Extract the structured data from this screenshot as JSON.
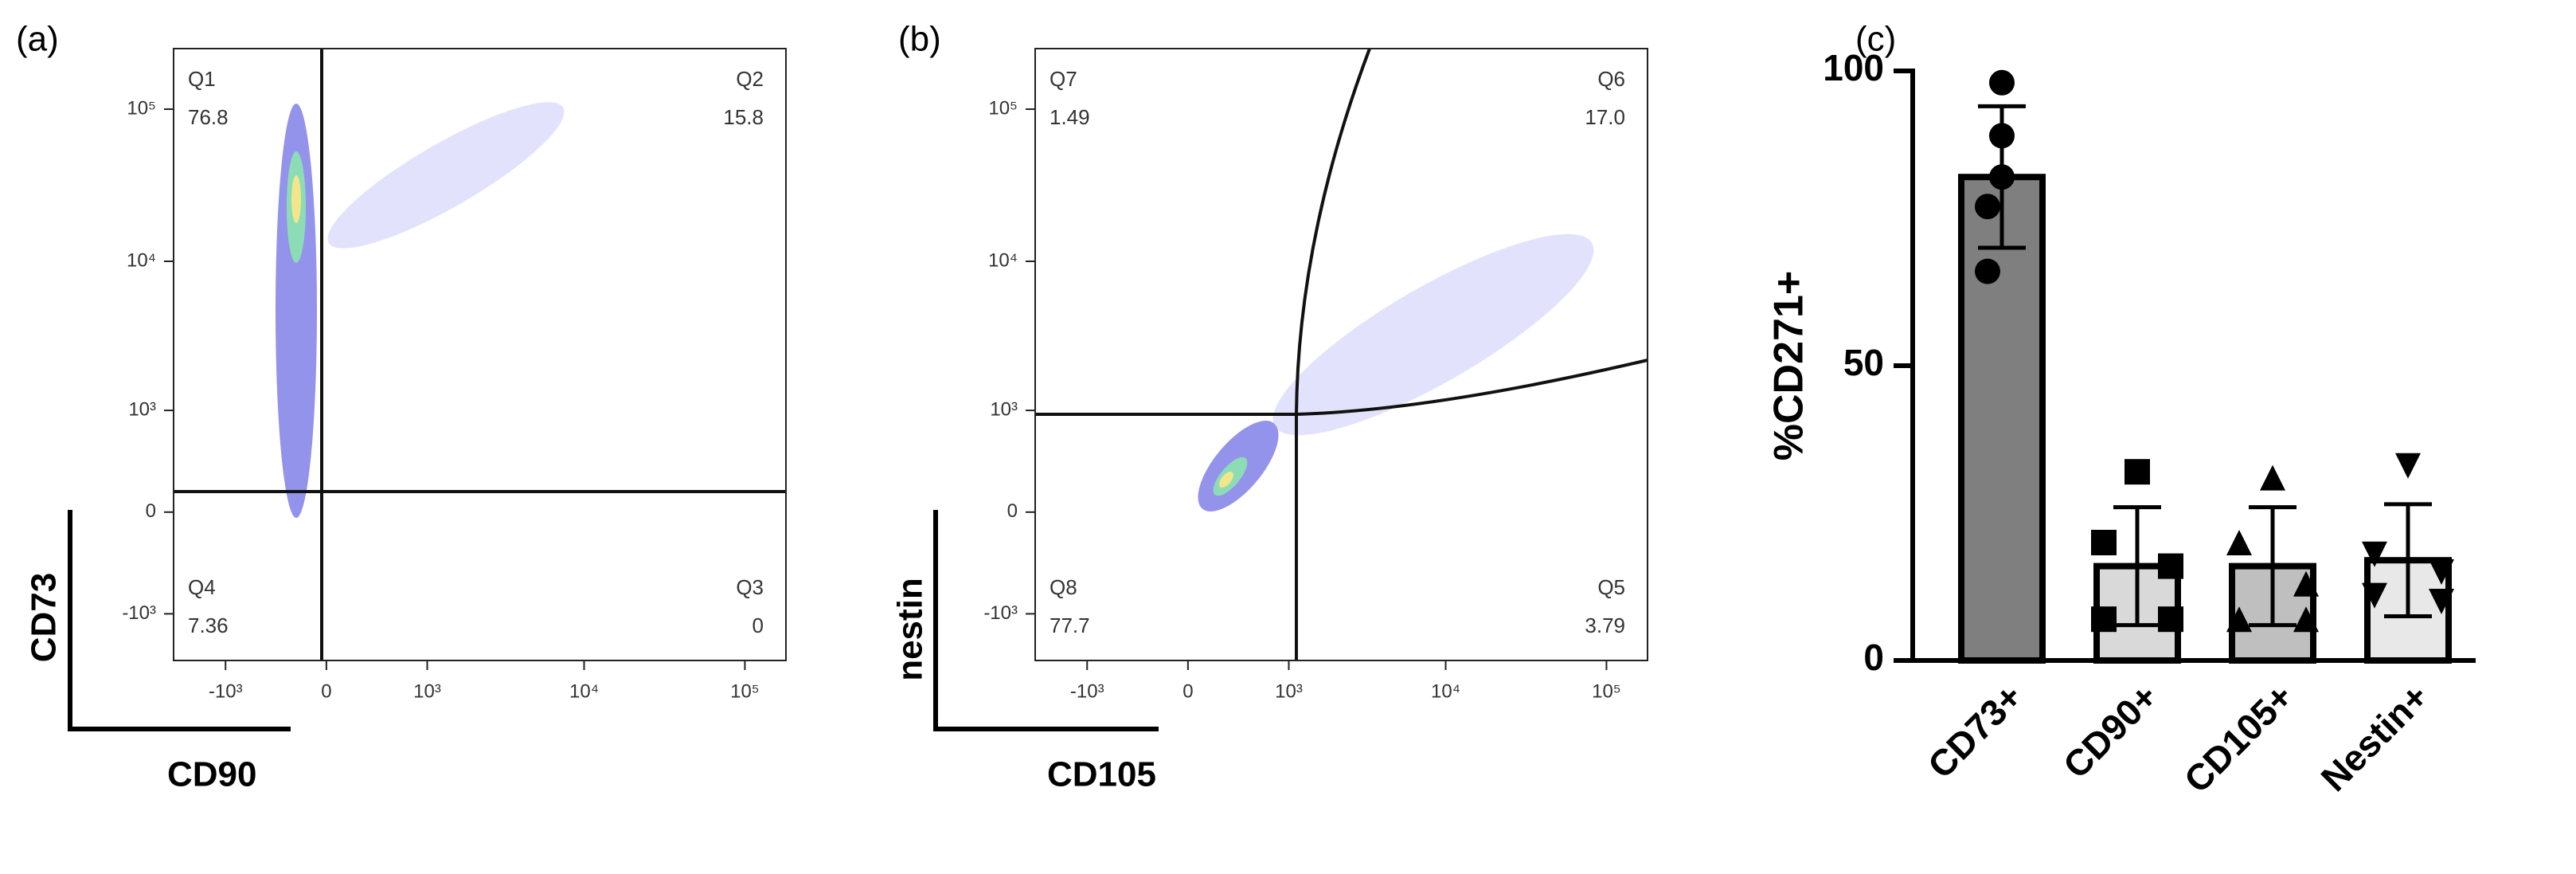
{
  "chart_data": [
    {
      "type": "flow",
      "title": "(a)",
      "xlabel": "CD90",
      "ylabel": "CD73",
      "xlim": [
        -2200,
        180000
      ],
      "ylim": [
        -2100,
        250000
      ],
      "xticks": [
        {
          "value": -1000,
          "label": "-10³"
        },
        0,
        {
          "value": 1000,
          "label": "10³"
        },
        {
          "value": 10000,
          "label": "10⁴"
        },
        {
          "value": 100000,
          "label": "10⁵"
        }
      ],
      "yticks": [
        {
          "value": -1000,
          "label": "-10³"
        },
        0,
        {
          "value": 1000,
          "label": "10³"
        },
        {
          "value": 10000,
          "label": "10⁴"
        },
        {
          "value": 100000,
          "label": "10⁵"
        }
      ],
      "quadrants": [
        "Q1",
        "Q2",
        "Q3",
        "Q4"
      ],
      "values": [
        76.8,
        15.8,
        0,
        7.36
      ],
      "value_labels": [
        "76.8",
        "15.8",
        "0",
        "7.36"
      ]
    },
    {
      "type": "flow",
      "title": "(b)",
      "xlabel": "CD105",
      "ylabel": "nestin",
      "xlim": [
        -2200,
        180000
      ],
      "ylim": [
        -2100,
        250000
      ],
      "xticks": [
        {
          "value": -1000,
          "label": "-10³"
        },
        0,
        {
          "value": 1000,
          "label": "10³"
        },
        {
          "value": 10000,
          "label": "10⁴"
        },
        {
          "value": 100000,
          "label": "10⁵"
        }
      ],
      "yticks": [
        {
          "value": -1000,
          "label": "-10³"
        },
        0,
        {
          "value": 1000,
          "label": "10³"
        },
        {
          "value": 10000,
          "label": "10⁴"
        },
        {
          "value": 100000,
          "label": "10⁵"
        }
      ],
      "quadrants": [
        "Q5",
        "Q6",
        "Q7",
        "Q8"
      ],
      "values": [
        3.79,
        17.0,
        1.49,
        77.7
      ],
      "value_labels": [
        "3.79",
        "17.0",
        "1.49",
        "77.7"
      ]
    },
    {
      "type": "bar",
      "title": "(c)",
      "ylabel": "%CD271+",
      "categories": [
        "CD73+",
        "CD90+",
        "CD105+",
        "Nestin+"
      ],
      "values": [
        82,
        16,
        16,
        17
      ],
      "errors": [
        12,
        10,
        10,
        9.5
      ],
      "points": [
        [
          98,
          89,
          82,
          77,
          66
        ],
        [
          32,
          20,
          16,
          7,
          7
        ],
        [
          31,
          20,
          13,
          7,
          7
        ],
        [
          33,
          18,
          15,
          11,
          10
        ]
      ],
      "markers": [
        "circle",
        "square",
        "triangle-up",
        "triangle-down"
      ],
      "colors": [
        "#7f7f7f",
        "#d9d9d9",
        "#bfbfbf",
        "#e8e8e8"
      ],
      "ylim": [
        0,
        100
      ],
      "yticks": [
        0,
        50,
        100
      ]
    }
  ]
}
